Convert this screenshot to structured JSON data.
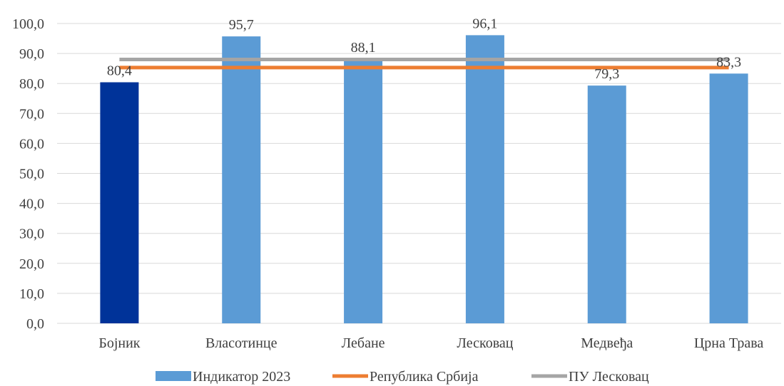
{
  "chart_data": {
    "type": "bar",
    "categories": [
      "Бојник",
      "Власотинце",
      "Лебане",
      "Лесковац",
      "Медвеђа",
      "Црна Трава"
    ],
    "series": [
      {
        "name": "Индикатор 2023",
        "type": "bar",
        "values": [
          80.4,
          95.7,
          88.1,
          96.1,
          79.3,
          83.3
        ],
        "value_labels": [
          "80,4",
          "95,7",
          "88,1",
          "96,1",
          "79,3",
          "83,3"
        ],
        "color": "#5b9bd5",
        "highlight": {
          "category": "Бојник",
          "color": "#003399"
        }
      },
      {
        "name": "Република Србија",
        "type": "line",
        "values": [
          85.3,
          85.3,
          85.3,
          85.3,
          85.3,
          85.3
        ],
        "color": "#ed7d31"
      },
      {
        "name": "ПУ Лесковац",
        "type": "line",
        "values": [
          88.0,
          88.0,
          88.0,
          88.0,
          88.0,
          88.0
        ],
        "color": "#a5a5a5"
      }
    ],
    "ylim": [
      0,
      100
    ],
    "yticks": [
      0,
      10,
      20,
      30,
      40,
      50,
      60,
      70,
      80,
      90,
      100
    ],
    "ytick_labels": [
      "0,0",
      "10,0",
      "20,0",
      "30,0",
      "40,0",
      "50,0",
      "60,0",
      "70,0",
      "80,0",
      "90,0",
      "100,0"
    ],
    "grid": true,
    "legend_position": "bottom",
    "title": "",
    "xlabel": "",
    "ylabel": ""
  }
}
